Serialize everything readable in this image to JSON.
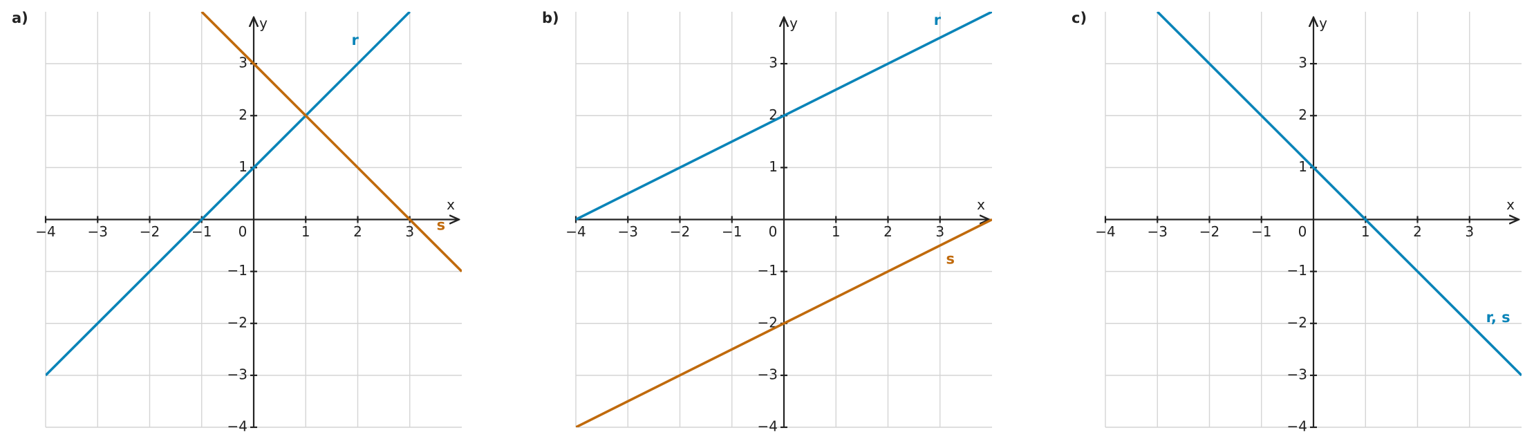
{
  "chart_data": [
    {
      "type": "line",
      "title": "a)",
      "xlabel": "x",
      "ylabel": "y",
      "xlim": [
        -4,
        4
      ],
      "ylim": [
        -4,
        4
      ],
      "xticks": [
        {
          "value": -4,
          "label": "−4"
        },
        {
          "value": -3,
          "label": "−3"
        },
        {
          "value": -2,
          "label": "−2"
        },
        {
          "value": -1,
          "label": "−1"
        },
        0,
        1,
        2,
        3
      ],
      "yticks": [
        {
          "value": -4,
          "label": "−4"
        },
        {
          "value": -3,
          "label": "−3"
        },
        {
          "value": -2,
          "label": "−2"
        },
        {
          "value": -1,
          "label": "−1"
        },
        1,
        2,
        3
      ],
      "grid": true,
      "series": [
        {
          "name": "r",
          "color": "#0a84b8",
          "x": [
            -4,
            3
          ],
          "values": [
            -3,
            4
          ]
        },
        {
          "name": "s",
          "color": "#c06a0c",
          "x": [
            -1,
            4
          ],
          "values": [
            4,
            -1
          ]
        }
      ]
    },
    {
      "type": "line",
      "title": "b)",
      "xlabel": "x",
      "ylabel": "y",
      "xlim": [
        -4,
        4
      ],
      "ylim": [
        -4,
        4
      ],
      "xticks": [
        {
          "value": -4,
          "label": "−4"
        },
        {
          "value": -3,
          "label": "−3"
        },
        {
          "value": -2,
          "label": "−2"
        },
        {
          "value": -1,
          "label": "−1"
        },
        0,
        1,
        2,
        3
      ],
      "yticks": [
        {
          "value": -4,
          "label": "−4"
        },
        {
          "value": -3,
          "label": "−3"
        },
        {
          "value": -2,
          "label": "−2"
        },
        {
          "value": -1,
          "label": "−1"
        },
        1,
        2,
        3
      ],
      "grid": true,
      "series": [
        {
          "name": "r",
          "color": "#0a84b8",
          "x": [
            -4,
            4
          ],
          "values": [
            0,
            4
          ]
        },
        {
          "name": "s",
          "color": "#c06a0c",
          "x": [
            -4,
            4
          ],
          "values": [
            -4,
            0
          ]
        }
      ]
    },
    {
      "type": "line",
      "title": "c)",
      "xlabel": "x",
      "ylabel": "y",
      "xlim": [
        -4,
        4
      ],
      "ylim": [
        -4,
        4
      ],
      "xticks": [
        {
          "value": -4,
          "label": "−4"
        },
        {
          "value": -3,
          "label": "−3"
        },
        {
          "value": -2,
          "label": "−2"
        },
        {
          "value": -1,
          "label": "−1"
        },
        0,
        1,
        2,
        3
      ],
      "yticks": [
        {
          "value": -4,
          "label": "−4"
        },
        {
          "value": -3,
          "label": "−3"
        },
        {
          "value": -2,
          "label": "−2"
        },
        {
          "value": -1,
          "label": "−1"
        },
        1,
        2,
        3
      ],
      "grid": true,
      "series": [
        {
          "name": "r, s",
          "color": "#0a84b8",
          "x": [
            -3,
            4
          ],
          "values": [
            4,
            -3
          ]
        }
      ]
    }
  ]
}
